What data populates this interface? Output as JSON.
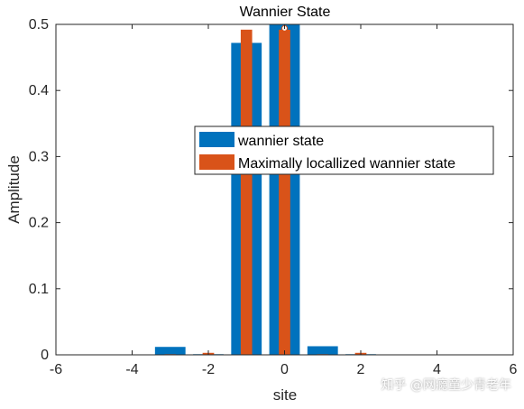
{
  "chart_data": {
    "type": "bar",
    "title": "Wannier State",
    "xlabel": "site",
    "ylabel": "Amplitude",
    "xlim": [
      -6,
      6
    ],
    "ylim": [
      0,
      0.5
    ],
    "x_ticks": [
      -6,
      -4,
      -2,
      0,
      2,
      4,
      6
    ],
    "y_ticks": [
      0,
      0.1,
      0.2,
      0.3,
      0.4,
      0.5
    ],
    "x_tick_labels": [
      "-6",
      "-4",
      "-2",
      "0",
      "2",
      "4",
      "6"
    ],
    "y_tick_labels": [
      "0",
      "0.1",
      "0.2",
      "0.3",
      "0.4",
      "0.5"
    ],
    "grid": false,
    "legend_position": "center-right",
    "x": [
      -3,
      -2,
      -1,
      0,
      1,
      2
    ],
    "series": [
      {
        "name": "wannier state",
        "color": "#0072bd",
        "values": [
          0.012,
          0.001,
          0.472,
          0.5,
          0.013,
          0.001
        ]
      },
      {
        "name": "Maximally locallized wannier state",
        "color": "#d95319",
        "values": [
          0.001,
          0.003,
          0.492,
          0.492,
          0.001,
          0.003
        ]
      }
    ],
    "marker": {
      "x": 0,
      "y": 0.494
    }
  },
  "watermark": "知乎 @网瘾童少青老年"
}
